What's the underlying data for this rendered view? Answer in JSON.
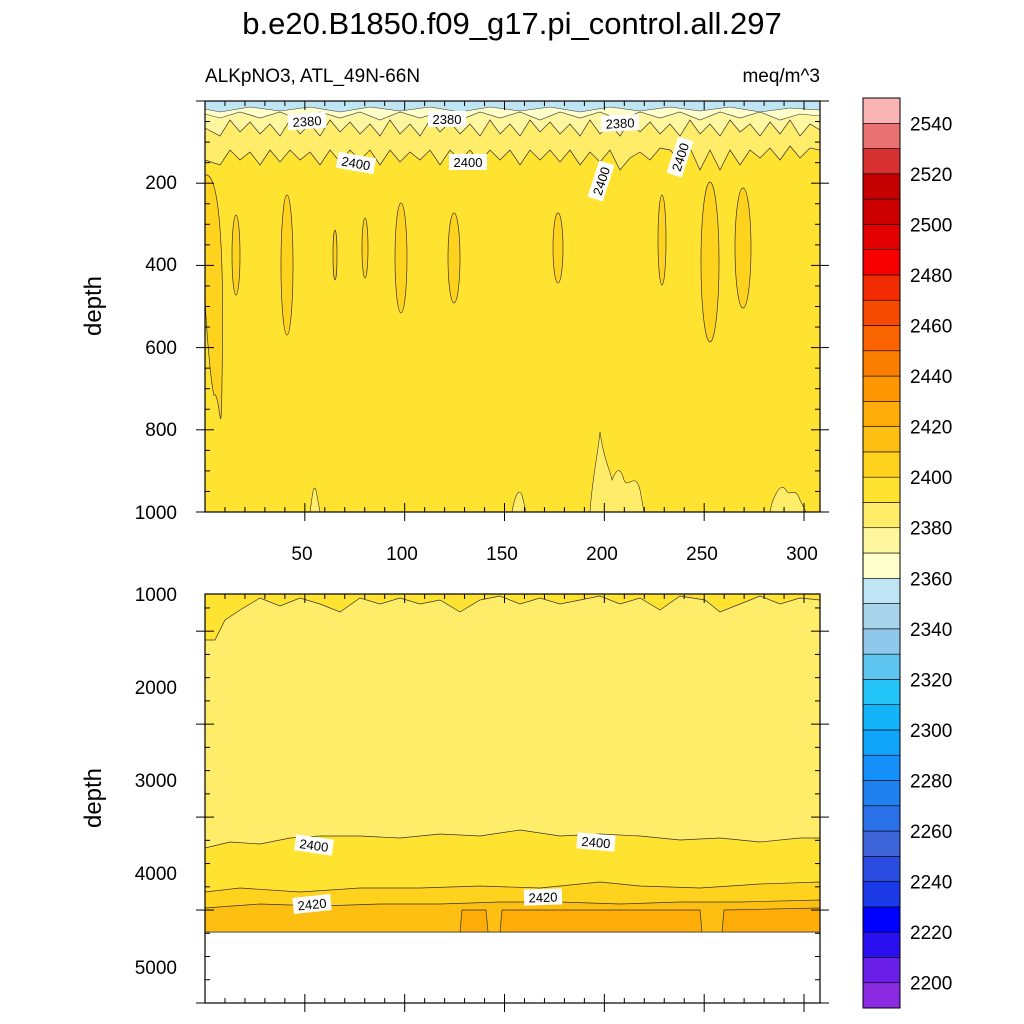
{
  "title": "b.e20.B1850.f09_g17.pi_control.all.297",
  "left_subtitle": "ALKpNO3, ATL_49N-66N",
  "right_subtitle": "meq/m^3",
  "colors": {
    "c2200": "#8a2be2",
    "c2210": "#6a1fe6",
    "c2220": "#2a10ef",
    "c2230": "#0000ff",
    "c2240": "#1a3ae8",
    "c2250": "#2a4ce0",
    "c2260": "#3d64d8",
    "c2270": "#2a70e8",
    "c2280": "#1f80f0",
    "c2290": "#1590fa",
    "c2300": "#11a4fb",
    "c2310": "#14b4fb",
    "c2320": "#23c4f8",
    "c2330": "#5ec4f0",
    "c2340": "#90c8eb",
    "c2350": "#a8d4ec",
    "c2360": "#bfe4f3",
    "c2370": "#ffffcc",
    "c2380": "#fff6a0",
    "c2390": "#ffed6a",
    "c2400": "#ffe330",
    "c2410": "#ffd21e",
    "c2420": "#fdbf11",
    "c2430": "#fdac08",
    "c2440": "#fd9600",
    "c2450": "#fc7e00",
    "c2460": "#f96400",
    "c2470": "#f54a00",
    "c2480": "#f22c00",
    "c2490": "#f60000",
    "c2500": "#e20000",
    "c2510": "#cc0000",
    "c2520": "#c50000",
    "c2530": "#d63030",
    "c2540": "#e87070",
    "c2550": "#fbb4b4"
  },
  "chart_data": [
    {
      "type": "contour",
      "panel": "upper",
      "xlabel": "",
      "ylabel": "depth",
      "xlim": [
        0,
        308
      ],
      "ylim": [
        1000,
        0
      ],
      "x_ticks": [
        "50",
        "100",
        "150",
        "200",
        "250",
        "300"
      ],
      "y_ticks": [
        "200",
        "400",
        "600",
        "800",
        "1000"
      ],
      "contour_labels": [
        {
          "text": "2380",
          "x": 50,
          "y": 45
        },
        {
          "text": "2380",
          "x": 121,
          "y": 42
        },
        {
          "text": "2380",
          "x": 208,
          "y": 52
        },
        {
          "text": "2400",
          "x": 76,
          "y": 150
        },
        {
          "text": "2400",
          "x": 132,
          "y": 147
        },
        {
          "text": "2400",
          "x": 199,
          "y": 210
        },
        {
          "text": "2400",
          "x": 238,
          "y": 148
        }
      ],
      "description_levels": {
        "surface": 2360,
        "upper_band": 2380,
        "interior": 2400,
        "patches": 2410
      }
    },
    {
      "type": "contour",
      "panel": "lower",
      "xlabel": "",
      "ylabel": "depth",
      "xlim": [
        0,
        308
      ],
      "ylim": [
        5400,
        1000
      ],
      "y_ticks": [
        "1000",
        "2000",
        "3000",
        "4000",
        "5000"
      ],
      "data_bottom_depth": 4620,
      "contour_labels": [
        {
          "text": "2400",
          "x": 54,
          "y": 3700
        },
        {
          "text": "2400",
          "x": 196,
          "y": 3660
        },
        {
          "text": "2420",
          "x": 54,
          "y": 4330
        },
        {
          "text": "2420",
          "x": 169,
          "y": 4240
        }
      ]
    },
    {
      "type": "colorbar",
      "levels": [
        2200,
        2210,
        2220,
        2230,
        2240,
        2250,
        2260,
        2270,
        2280,
        2290,
        2300,
        2310,
        2320,
        2330,
        2340,
        2350,
        2360,
        2370,
        2380,
        2390,
        2400,
        2410,
        2420,
        2430,
        2440,
        2450,
        2460,
        2470,
        2480,
        2490,
        2500,
        2510,
        2520,
        2530,
        2540,
        2550
      ],
      "tick_labels": [
        "2200",
        "2220",
        "2240",
        "2260",
        "2280",
        "2300",
        "2320",
        "2340",
        "2360",
        "2380",
        "2400",
        "2420",
        "2440",
        "2460",
        "2480",
        "2500",
        "2520",
        "2540"
      ]
    }
  ]
}
